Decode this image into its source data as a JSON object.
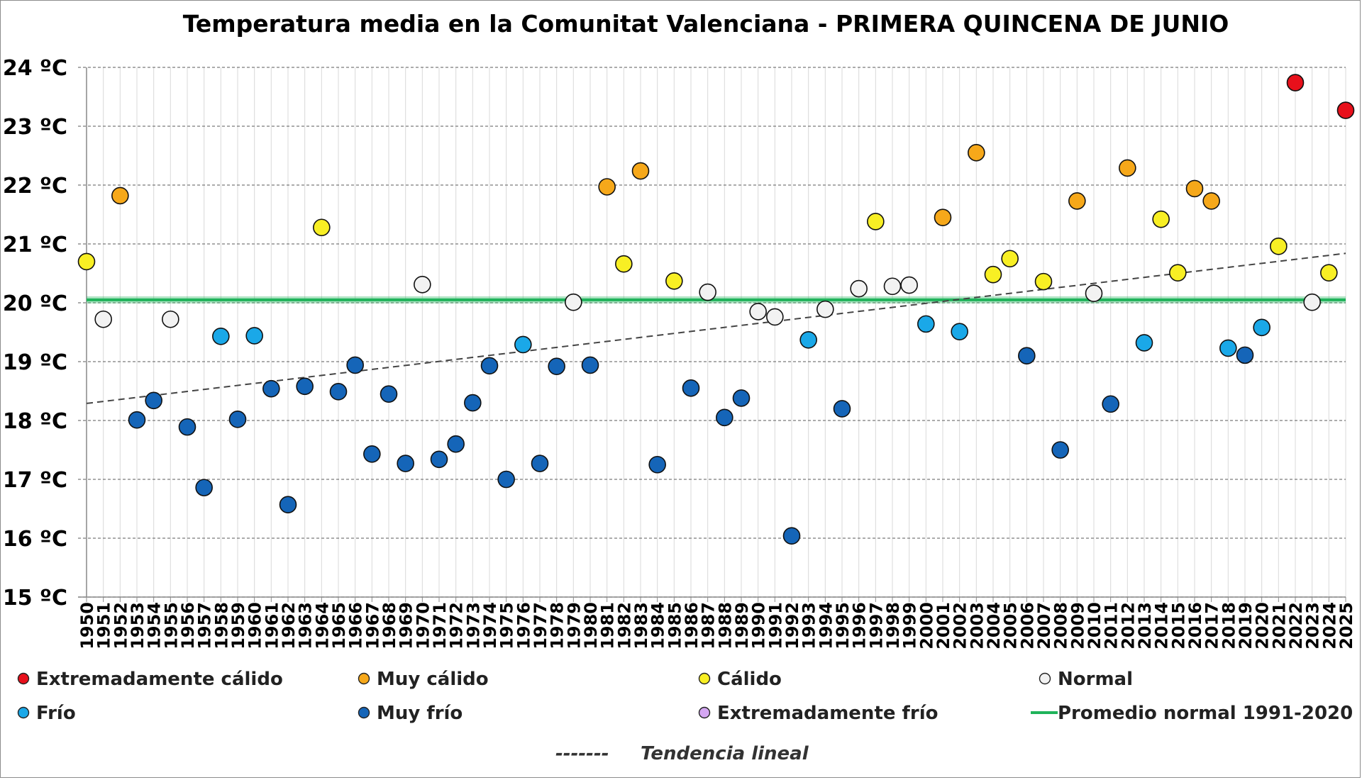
{
  "chart_data": {
    "type": "scatter",
    "title": "Temperatura media en la Comunitat Valenciana - PRIMERA QUINCENA DE JUNIO",
    "ylim": [
      15,
      24
    ],
    "yticks": [
      {
        "value": 24,
        "label": "24 ºC"
      },
      {
        "value": 23,
        "label": "23 ºC"
      },
      {
        "value": 22,
        "label": "22 ºC"
      },
      {
        "value": 21,
        "label": "21 ºC"
      },
      {
        "value": 20,
        "label": "20 ºC"
      },
      {
        "value": 19,
        "label": "19 ºC"
      },
      {
        "value": 18,
        "label": "18 ºC"
      },
      {
        "value": 17,
        "label": "17 ºC"
      },
      {
        "value": 16,
        "label": "16 ºC"
      },
      {
        "value": 15,
        "label": "15 ºC"
      }
    ],
    "grid": true,
    "categories_colors": {
      "ext_calido": "#e8101b",
      "muy_calido": "#f6a81a",
      "calido": "#f8ef24",
      "normal": "#f2f2f2",
      "frio": "#1aa8e8",
      "muy_frio": "#1565b8",
      "ext_frio": "#d4a6f2"
    },
    "points": [
      {
        "year": "1950",
        "value": 20.7,
        "cat": "calido"
      },
      {
        "year": "1951",
        "value": 19.72,
        "cat": "normal"
      },
      {
        "year": "1952",
        "value": 21.82,
        "cat": "muy_calido"
      },
      {
        "year": "1953",
        "value": 18.01,
        "cat": "muy_frio"
      },
      {
        "year": "1954",
        "value": 18.34,
        "cat": "muy_frio"
      },
      {
        "year": "1955",
        "value": 19.72,
        "cat": "normal"
      },
      {
        "year": "1956",
        "value": 17.89,
        "cat": "muy_frio"
      },
      {
        "year": "1957",
        "value": 16.86,
        "cat": "muy_frio"
      },
      {
        "year": "1958",
        "value": 19.43,
        "cat": "frio"
      },
      {
        "year": "1959",
        "value": 18.02,
        "cat": "muy_frio"
      },
      {
        "year": "1960",
        "value": 19.44,
        "cat": "frio"
      },
      {
        "year": "1961",
        "value": 18.54,
        "cat": "muy_frio"
      },
      {
        "year": "1962",
        "value": 16.57,
        "cat": "muy_frio"
      },
      {
        "year": "1963",
        "value": 18.58,
        "cat": "muy_frio"
      },
      {
        "year": "1964",
        "value": 21.28,
        "cat": "calido"
      },
      {
        "year": "1965",
        "value": 18.49,
        "cat": "muy_frio"
      },
      {
        "year": "1966",
        "value": 18.94,
        "cat": "muy_frio"
      },
      {
        "year": "1967",
        "value": 17.43,
        "cat": "muy_frio"
      },
      {
        "year": "1968",
        "value": 18.45,
        "cat": "muy_frio"
      },
      {
        "year": "1969",
        "value": 17.27,
        "cat": "muy_frio"
      },
      {
        "year": "1970",
        "value": 20.31,
        "cat": "normal"
      },
      {
        "year": "1971",
        "value": 17.34,
        "cat": "muy_frio"
      },
      {
        "year": "1972",
        "value": 17.6,
        "cat": "muy_frio"
      },
      {
        "year": "1973",
        "value": 18.3,
        "cat": "muy_frio"
      },
      {
        "year": "1974",
        "value": 18.93,
        "cat": "muy_frio"
      },
      {
        "year": "1975",
        "value": 17.0,
        "cat": "muy_frio"
      },
      {
        "year": "1976",
        "value": 19.29,
        "cat": "frio"
      },
      {
        "year": "1977",
        "value": 17.27,
        "cat": "muy_frio"
      },
      {
        "year": "1978",
        "value": 18.92,
        "cat": "muy_frio"
      },
      {
        "year": "1979",
        "value": 20.01,
        "cat": "normal"
      },
      {
        "year": "1980",
        "value": 18.94,
        "cat": "muy_frio"
      },
      {
        "year": "1981",
        "value": 21.97,
        "cat": "muy_calido"
      },
      {
        "year": "1982",
        "value": 20.66,
        "cat": "calido"
      },
      {
        "year": "1983",
        "value": 22.24,
        "cat": "muy_calido"
      },
      {
        "year": "1984",
        "value": 17.25,
        "cat": "muy_frio"
      },
      {
        "year": "1985",
        "value": 20.37,
        "cat": "calido"
      },
      {
        "year": "1986",
        "value": 18.55,
        "cat": "muy_frio"
      },
      {
        "year": "1987",
        "value": 20.18,
        "cat": "normal"
      },
      {
        "year": "1988",
        "value": 18.05,
        "cat": "muy_frio"
      },
      {
        "year": "1989",
        "value": 18.38,
        "cat": "muy_frio"
      },
      {
        "year": "1990",
        "value": 19.85,
        "cat": "normal"
      },
      {
        "year": "1991",
        "value": 19.76,
        "cat": "normal"
      },
      {
        "year": "1992",
        "value": 16.04,
        "cat": "muy_frio"
      },
      {
        "year": "1993",
        "value": 19.37,
        "cat": "frio"
      },
      {
        "year": "1994",
        "value": 19.89,
        "cat": "normal"
      },
      {
        "year": "1995",
        "value": 18.2,
        "cat": "muy_frio"
      },
      {
        "year": "1996",
        "value": 20.24,
        "cat": "normal"
      },
      {
        "year": "1997",
        "value": 21.38,
        "cat": "calido"
      },
      {
        "year": "1998",
        "value": 20.28,
        "cat": "normal"
      },
      {
        "year": "1999",
        "value": 20.3,
        "cat": "normal"
      },
      {
        "year": "2000",
        "value": 19.64,
        "cat": "frio"
      },
      {
        "year": "2001",
        "value": 21.45,
        "cat": "muy_calido"
      },
      {
        "year": "2002",
        "value": 19.51,
        "cat": "frio"
      },
      {
        "year": "2003",
        "value": 22.55,
        "cat": "muy_calido"
      },
      {
        "year": "2004",
        "value": 20.48,
        "cat": "calido"
      },
      {
        "year": "2005",
        "value": 20.75,
        "cat": "calido"
      },
      {
        "year": "2006",
        "value": 19.1,
        "cat": "muy_frio"
      },
      {
        "year": "2007",
        "value": 20.36,
        "cat": "calido"
      },
      {
        "year": "2008",
        "value": 17.5,
        "cat": "muy_frio"
      },
      {
        "year": "2009",
        "value": 21.73,
        "cat": "muy_calido"
      },
      {
        "year": "2010",
        "value": 20.16,
        "cat": "normal"
      },
      {
        "year": "2011",
        "value": 18.28,
        "cat": "muy_frio"
      },
      {
        "year": "2012",
        "value": 22.29,
        "cat": "muy_calido"
      },
      {
        "year": "2013",
        "value": 19.32,
        "cat": "frio"
      },
      {
        "year": "2014",
        "value": 21.42,
        "cat": "calido"
      },
      {
        "year": "2015",
        "value": 20.51,
        "cat": "calido"
      },
      {
        "year": "2016",
        "value": 21.94,
        "cat": "muy_calido"
      },
      {
        "year": "2017",
        "value": 21.73,
        "cat": "muy_calido"
      },
      {
        "year": "2018",
        "value": 19.23,
        "cat": "frio"
      },
      {
        "year": "2019",
        "value": 19.11,
        "cat": "muy_frio"
      },
      {
        "year": "2020",
        "value": 19.58,
        "cat": "frio"
      },
      {
        "year": "2021",
        "value": 20.96,
        "cat": "calido"
      },
      {
        "year": "2022",
        "value": 23.74,
        "cat": "ext_calido"
      },
      {
        "year": "2023",
        "value": 20.01,
        "cat": "normal"
      },
      {
        "year": "2024",
        "value": 20.51,
        "cat": "calido"
      },
      {
        "year": "2025",
        "value": 23.27,
        "cat": "ext_calido"
      }
    ],
    "normal_line": {
      "value": 20.05,
      "color": "#1fb35a"
    },
    "trend": {
      "start": 18.29,
      "end": 20.84,
      "color": "#444444"
    },
    "legend": {
      "position": "bottom",
      "items": [
        {
          "label": "Extremadamente cálido",
          "cat": "ext_calido",
          "kind": "dot"
        },
        {
          "label": "Muy cálido",
          "cat": "muy_calido",
          "kind": "dot"
        },
        {
          "label": "Cálido",
          "cat": "calido",
          "kind": "dot"
        },
        {
          "label": "Normal",
          "cat": "normal",
          "kind": "dot"
        },
        {
          "label": "Frío",
          "cat": "frio",
          "kind": "dot"
        },
        {
          "label": "Muy frío",
          "cat": "muy_frio",
          "kind": "dot"
        },
        {
          "label": "Extremadamente frío",
          "cat": "ext_frio",
          "kind": "dot"
        },
        {
          "label": "Promedio normal 1991-2020",
          "cat": "normal_line",
          "kind": "line"
        }
      ],
      "trend_label": "Tendencia lineal",
      "trend_dashes": "-------"
    }
  }
}
